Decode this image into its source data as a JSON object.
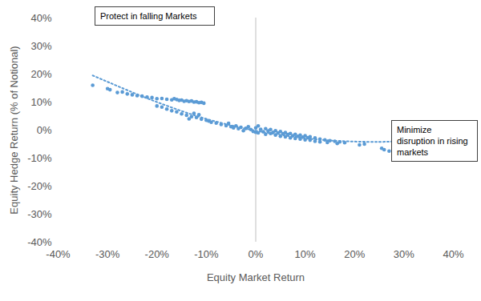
{
  "chart_data": {
    "type": "scatter",
    "xlabel": "Equity Market Return",
    "ylabel": "Equity Hedge Return (% of Notional)",
    "xlim": [
      -40,
      40
    ],
    "ylim": [
      -40,
      40
    ],
    "xticks": [
      {
        "value": -40,
        "label": "-40%"
      },
      {
        "value": -30,
        "label": "-30%"
      },
      {
        "value": -20,
        "label": "-20%"
      },
      {
        "value": -10,
        "label": "-10%"
      },
      {
        "value": 0,
        "label": "0%"
      },
      {
        "value": 10,
        "label": "10%"
      },
      {
        "value": 20,
        "label": "20%"
      },
      {
        "value": 30,
        "label": "30%"
      },
      {
        "value": 40,
        "label": "40%"
      }
    ],
    "yticks": [
      {
        "value": -40,
        "label": "-40%"
      },
      {
        "value": -30,
        "label": "-30%"
      },
      {
        "value": -20,
        "label": "-20%"
      },
      {
        "value": -10,
        "label": "-10%"
      },
      {
        "value": 0,
        "label": "0%"
      },
      {
        "value": 10,
        "label": "10%"
      },
      {
        "value": 20,
        "label": "20%"
      },
      {
        "value": 30,
        "label": "30%"
      },
      {
        "value": 40,
        "label": "40%"
      }
    ],
    "grid": false,
    "annotations": [
      {
        "text": "Protect in falling Markets"
      },
      {
        "text": "Minimize disruption in rising markets"
      }
    ],
    "series": [
      {
        "type": "scatter",
        "marker": "circle",
        "color": "#5b9bd5",
        "x": [
          -18,
          -17,
          -16,
          -15.5,
          -15,
          -14,
          -13.5,
          -13,
          -12.5,
          -12,
          -11.5,
          -11,
          -10.5,
          -16.5,
          -14.5,
          -33,
          -30,
          -29.5,
          -28,
          -27,
          -26,
          -25,
          -24,
          -23,
          -22,
          -21,
          -20,
          -19,
          -20,
          -19,
          -18,
          -17,
          -16,
          -15,
          -14,
          -13,
          -12,
          -11,
          -10,
          -9.5,
          -9,
          -8,
          -13.5,
          -12.5,
          -11.5,
          -7,
          -6,
          -5.5,
          -5,
          -4.5,
          -4,
          -3.5,
          -3,
          -2.5,
          -2,
          -1.5,
          -1,
          -0.5,
          0,
          0,
          0.5,
          0.5,
          1,
          1.5,
          2,
          2,
          2.5,
          3,
          3,
          3.5,
          4,
          4,
          4.5,
          5,
          5,
          5.5,
          6,
          6,
          6.5,
          7,
          7,
          7.5,
          8,
          8,
          8.5,
          9,
          9,
          9.5,
          10,
          10,
          10.5,
          11,
          11,
          12,
          12,
          13,
          13,
          14,
          14.5,
          15,
          16,
          16.5,
          17,
          18,
          21,
          22,
          25.5,
          26,
          27,
          29
        ],
        "values": [
          11,
          10.8,
          10.9,
          10.6,
          10.7,
          10.5,
          10.2,
          10.4,
          10.0,
          10.1,
          9.8,
          9.9,
          9.6,
          11.2,
          10.3,
          16,
          14.8,
          14.4,
          13.4,
          13.6,
          12.9,
          12.6,
          12.3,
          12.1,
          11.8,
          11.6,
          11.2,
          11.3,
          8.6,
          8.2,
          7.5,
          6.9,
          6.5,
          5.8,
          5.3,
          4.8,
          4.5,
          3.9,
          3.5,
          3.2,
          2.8,
          2.5,
          4.0,
          6.0,
          5.5,
          2.0,
          1.6,
          2.4,
          1.2,
          0.8,
          1.5,
          0.5,
          1.0,
          -0.2,
          0.6,
          1.2,
          0.2,
          -0.5,
          0.8,
          -0.8,
          1.5,
          -1,
          0.3,
          -0.6,
          0.5,
          -1.5,
          -0.3,
          0.2,
          -1.2,
          -0.8,
          -0.2,
          -1.8,
          -1.0,
          -0.5,
          -2.2,
          -1.3,
          -0.9,
          -2.4,
          -1.6,
          -1.2,
          -2.8,
          -2.0,
          -1.5,
          -3.0,
          -2.2,
          -1.8,
          -3.2,
          -2.5,
          -2.0,
          -3.5,
          -2.7,
          -2.4,
          -3.6,
          -2.8,
          -4.0,
          -3.2,
          -4.2,
          -3.5,
          -4.4,
          -3.8,
          -4.0,
          -4.8,
          -4.2,
          -4.5,
          -5.3,
          -5.0,
          -6.5,
          -7.0,
          -7.5,
          -8.5
        ]
      },
      {
        "type": "line",
        "line_style": "dotted",
        "color": "#5b9bd5",
        "x": [
          -33,
          -25,
          -20,
          -15,
          -10,
          -5,
          0,
          5,
          10,
          15,
          20,
          25,
          29
        ],
        "values": [
          19.5,
          13.5,
          10,
          6.8,
          4,
          1.7,
          -0.2,
          -1.7,
          -2.9,
          -3.7,
          -4.1,
          -4.2,
          -4.0
        ]
      }
    ]
  }
}
